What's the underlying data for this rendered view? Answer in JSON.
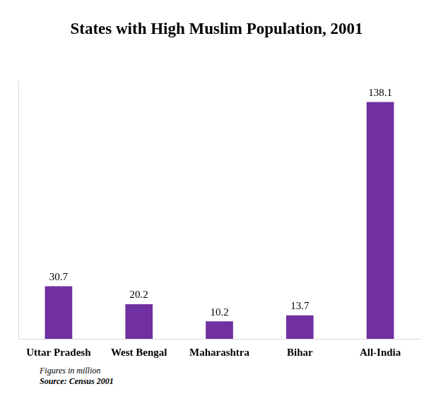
{
  "chart_data": {
    "type": "bar",
    "title": "States with High Muslim Population, 2001",
    "categories": [
      "Uttar Pradesh",
      "West Bengal",
      "Maharashtra",
      "Bihar",
      "All-India"
    ],
    "values": [
      30.7,
      20.2,
      10.2,
      13.7,
      138.1
    ],
    "color": "#7030a0",
    "ylim": [
      0,
      150
    ],
    "grid": false,
    "data_labels": true,
    "tick_labels": "x",
    "footnote": "Figures in million",
    "source": "Source: Census 2001"
  }
}
